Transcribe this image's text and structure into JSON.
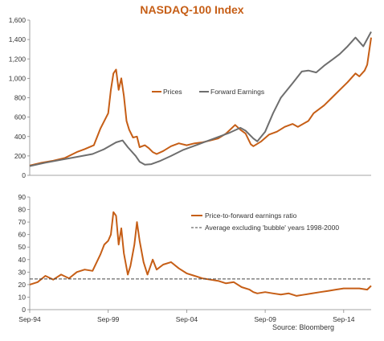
{
  "title": "NASDAQ-100 Index",
  "source": "Source: Bloomberg",
  "colors": {
    "prices": "#C65E16",
    "forward": "#6E6E6E",
    "ratio": "#C65E16",
    "average": "#444444",
    "axis": "#888888",
    "title": "#C65E16"
  },
  "chart_data": [
    {
      "type": "line",
      "title": "NASDAQ-100 Index",
      "ylim": [
        0,
        1600
      ],
      "yticks": [
        0,
        200,
        400,
        600,
        800,
        1000,
        1200,
        1400,
        1600
      ],
      "ytick_labels": [
        "0",
        "200",
        "400",
        "600",
        "800",
        "1,000",
        "1,200",
        "1,400",
        "1,600"
      ],
      "xlim": [
        "1994-09",
        "2016-06"
      ],
      "legend_position": "center",
      "series": [
        {
          "name": "Prices",
          "color": "#C65E16",
          "points": [
            [
              "1994-09",
              100
            ],
            [
              "1995-06",
              130
            ],
            [
              "1996-03",
              150
            ],
            [
              "1996-12",
              180
            ],
            [
              "1997-09",
              240
            ],
            [
              "1998-03",
              270
            ],
            [
              "1998-10",
              310
            ],
            [
              "1999-03",
              480
            ],
            [
              "1999-06",
              560
            ],
            [
              "1999-09",
              640
            ],
            [
              "1999-11",
              880
            ],
            [
              "2000-01",
              1050
            ],
            [
              "2000-03",
              1090
            ],
            [
              "2000-05",
              880
            ],
            [
              "2000-07",
              1000
            ],
            [
              "2000-09",
              820
            ],
            [
              "2000-11",
              560
            ],
            [
              "2001-01",
              470
            ],
            [
              "2001-04",
              390
            ],
            [
              "2001-07",
              400
            ],
            [
              "2001-09",
              290
            ],
            [
              "2002-01",
              310
            ],
            [
              "2002-04",
              280
            ],
            [
              "2002-07",
              240
            ],
            [
              "2002-10",
              220
            ],
            [
              "2003-03",
              250
            ],
            [
              "2003-09",
              300
            ],
            [
              "2004-03",
              330
            ],
            [
              "2004-09",
              310
            ],
            [
              "2005-03",
              330
            ],
            [
              "2005-09",
              340
            ],
            [
              "2006-03",
              360
            ],
            [
              "2006-09",
              380
            ],
            [
              "2007-03",
              430
            ],
            [
              "2007-10",
              520
            ],
            [
              "2008-02",
              470
            ],
            [
              "2008-06",
              430
            ],
            [
              "2008-10",
              320
            ],
            [
              "2008-12",
              300
            ],
            [
              "2009-06",
              350
            ],
            [
              "2009-12",
              420
            ],
            [
              "2010-06",
              450
            ],
            [
              "2010-12",
              500
            ],
            [
              "2011-06",
              530
            ],
            [
              "2011-10",
              500
            ],
            [
              "2012-06",
              560
            ],
            [
              "2012-10",
              640
            ],
            [
              "2013-06",
              720
            ],
            [
              "2013-12",
              800
            ],
            [
              "2014-06",
              880
            ],
            [
              "2014-12",
              960
            ],
            [
              "2015-06",
              1050
            ],
            [
              "2015-09",
              1020
            ],
            [
              "2016-01",
              1080
            ],
            [
              "2016-03",
              1140
            ],
            [
              "2016-06",
              1420
            ]
          ]
        },
        {
          "name": "Forward Earnings",
          "color": "#6E6E6E",
          "points": [
            [
              "1994-09",
              95
            ],
            [
              "1995-09",
              130
            ],
            [
              "1996-09",
              160
            ],
            [
              "1997-09",
              190
            ],
            [
              "1998-09",
              220
            ],
            [
              "1999-06",
              270
            ],
            [
              "2000-03",
              340
            ],
            [
              "2000-08",
              360
            ],
            [
              "2000-12",
              290
            ],
            [
              "2001-06",
              200
            ],
            [
              "2001-09",
              140
            ],
            [
              "2002-01",
              110
            ],
            [
              "2002-06",
              115
            ],
            [
              "2003-01",
              150
            ],
            [
              "2003-09",
              200
            ],
            [
              "2004-06",
              260
            ],
            [
              "2005-06",
              320
            ],
            [
              "2006-06",
              380
            ],
            [
              "2007-06",
              440
            ],
            [
              "2008-02",
              490
            ],
            [
              "2008-06",
              460
            ],
            [
              "2008-12",
              380
            ],
            [
              "2009-03",
              350
            ],
            [
              "2009-09",
              450
            ],
            [
              "2010-03",
              640
            ],
            [
              "2010-09",
              800
            ],
            [
              "2011-06",
              950
            ],
            [
              "2012-01",
              1070
            ],
            [
              "2012-06",
              1080
            ],
            [
              "2012-12",
              1060
            ],
            [
              "2013-06",
              1130
            ],
            [
              "2014-01",
              1200
            ],
            [
              "2014-06",
              1250
            ],
            [
              "2014-12",
              1330
            ],
            [
              "2015-06",
              1420
            ],
            [
              "2015-12",
              1330
            ],
            [
              "2016-06",
              1480
            ]
          ]
        }
      ]
    },
    {
      "type": "line",
      "title": "",
      "ylim": [
        0,
        90
      ],
      "yticks": [
        0,
        10,
        20,
        30,
        40,
        50,
        60,
        70,
        80,
        90
      ],
      "ytick_labels": [
        "0",
        "10",
        "20",
        "30",
        "40",
        "50",
        "60",
        "70",
        "80",
        "90"
      ],
      "xlim": [
        "1994-09",
        "2016-06"
      ],
      "xticks": [
        "1994-09",
        "1999-09",
        "2004-09",
        "2009-09",
        "2014-09"
      ],
      "xtick_labels": [
        "Sep-94",
        "Sep-99",
        "Sep-04",
        "Sep-09",
        "Sep-14"
      ],
      "legend_position": "top-right",
      "series": [
        {
          "name": "Price-to-forward earnings ratio",
          "color": "#C65E16",
          "points": [
            [
              "1994-09",
              20
            ],
            [
              "1995-03",
              22
            ],
            [
              "1995-09",
              27
            ],
            [
              "1996-03",
              24
            ],
            [
              "1996-09",
              28
            ],
            [
              "1997-03",
              25
            ],
            [
              "1997-09",
              30
            ],
            [
              "1998-03",
              32
            ],
            [
              "1998-09",
              31
            ],
            [
              "1999-03",
              44
            ],
            [
              "1999-06",
              52
            ],
            [
              "1999-09",
              55
            ],
            [
              "1999-11",
              60
            ],
            [
              "2000-01",
              78
            ],
            [
              "2000-03",
              75
            ],
            [
              "2000-05",
              52
            ],
            [
              "2000-07",
              65
            ],
            [
              "2000-09",
              45
            ],
            [
              "2000-12",
              28
            ],
            [
              "2001-02",
              35
            ],
            [
              "2001-05",
              52
            ],
            [
              "2001-07",
              70
            ],
            [
              "2001-09",
              55
            ],
            [
              "2001-12",
              38
            ],
            [
              "2002-03",
              28
            ],
            [
              "2002-07",
              40
            ],
            [
              "2002-10",
              32
            ],
            [
              "2003-03",
              36
            ],
            [
              "2003-09",
              38
            ],
            [
              "2004-03",
              33
            ],
            [
              "2004-09",
              29
            ],
            [
              "2005-03",
              27
            ],
            [
              "2005-09",
              25
            ],
            [
              "2006-03",
              24
            ],
            [
              "2006-09",
              23
            ],
            [
              "2007-03",
              21
            ],
            [
              "2007-09",
              22
            ],
            [
              "2008-03",
              18
            ],
            [
              "2008-09",
              16
            ],
            [
              "2008-12",
              14
            ],
            [
              "2009-03",
              13
            ],
            [
              "2009-09",
              14
            ],
            [
              "2010-03",
              13
            ],
            [
              "2010-09",
              12
            ],
            [
              "2011-03",
              13
            ],
            [
              "2011-09",
              11
            ],
            [
              "2012-03",
              12
            ],
            [
              "2012-09",
              13
            ],
            [
              "2013-03",
              14
            ],
            [
              "2013-09",
              15
            ],
            [
              "2014-03",
              16
            ],
            [
              "2014-09",
              17
            ],
            [
              "2015-03",
              17
            ],
            [
              "2015-09",
              17
            ],
            [
              "2016-03",
              16
            ],
            [
              "2016-06",
              19
            ]
          ]
        },
        {
          "name": "Average excluding 'bubble' years 1998-2000",
          "color": "#444444",
          "style": "dashed",
          "constant": 24.5
        }
      ]
    }
  ]
}
